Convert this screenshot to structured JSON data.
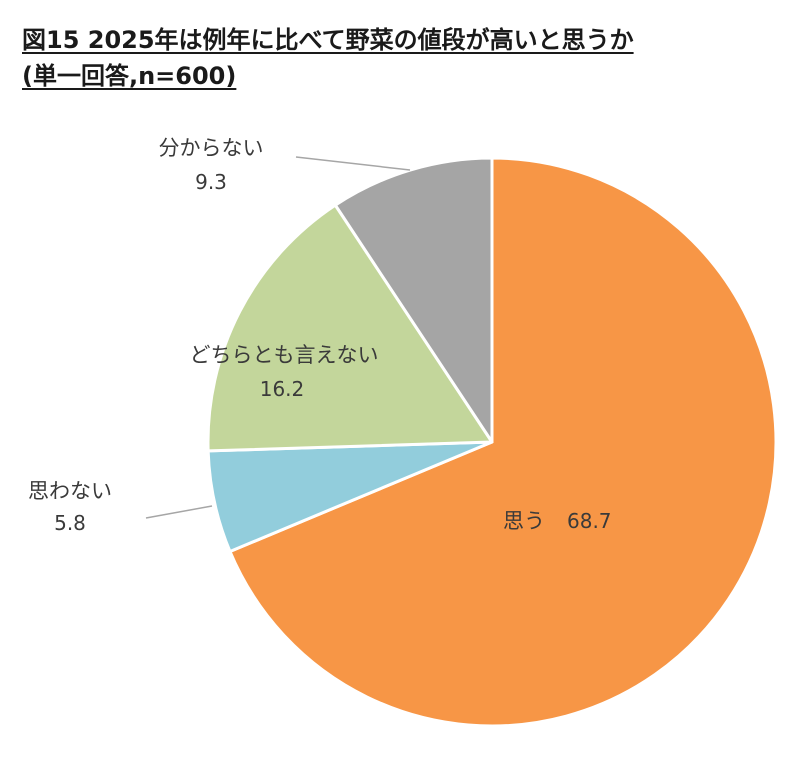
{
  "title": {
    "line1": "図15 2025年は例年に比べて野菜の値段が高いと思うか",
    "line2": "(単一回答,n=600)"
  },
  "chart_data": {
    "type": "pie",
    "start": "12 o'clock",
    "direction": "clockwise",
    "slices": [
      {
        "label": "思う",
        "value": 68.7,
        "color": "#F79646"
      },
      {
        "label": "思わない",
        "value": 5.8,
        "color": "#92CDDC"
      },
      {
        "label": "どちらとも言えない",
        "value": 16.2,
        "color": "#C3D69B"
      },
      {
        "label": "分からない",
        "value": 9.3,
        "color": "#A5A5A5"
      }
    ]
  }
}
